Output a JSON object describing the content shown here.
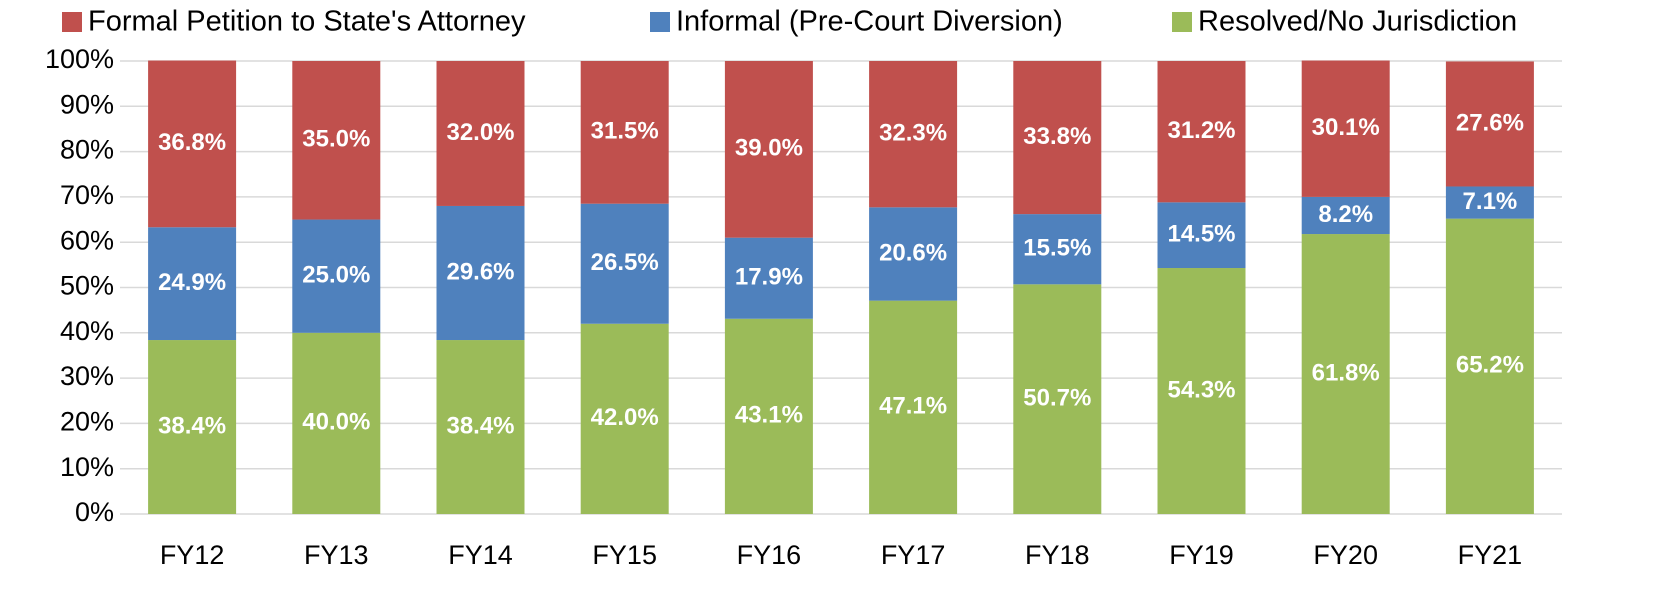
{
  "chart_data": {
    "type": "stacked_bar",
    "categories": [
      "FY12",
      "FY13",
      "FY14",
      "FY15",
      "FY16",
      "FY17",
      "FY18",
      "FY19",
      "FY20",
      "FY21"
    ],
    "series": [
      {
        "name": "Resolved/No Jurisdiction",
        "color": "#9bbb59",
        "values": [
          38.4,
          40.0,
          38.4,
          42.0,
          43.1,
          47.1,
          50.7,
          54.3,
          61.8,
          65.2
        ],
        "value_labels": [
          "38.4%",
          "40.0%",
          "38.4%",
          "42.0%",
          "43.1%",
          "47.1%",
          "50.7%",
          "54.3%",
          "61.8%",
          "65.2%"
        ]
      },
      {
        "name": "Informal (Pre-Court Diversion)",
        "color": "#4f81bd",
        "values": [
          24.9,
          25.0,
          29.6,
          26.5,
          17.9,
          20.6,
          15.5,
          14.5,
          8.2,
          7.1
        ],
        "value_labels": [
          "24.9%",
          "25.0%",
          "29.6%",
          "26.5%",
          "17.9%",
          "20.6%",
          "15.5%",
          "14.5%",
          "8.2%",
          "7.1%"
        ]
      },
      {
        "name": "Formal Petition to State's Attorney",
        "color": "#c0504d",
        "values": [
          36.8,
          35.0,
          32.0,
          31.5,
          39.0,
          32.3,
          33.8,
          31.2,
          30.1,
          27.6
        ],
        "value_labels": [
          "36.8%",
          "35.0%",
          "32.0%",
          "31.5%",
          "39.0%",
          "32.3%",
          "33.8%",
          "31.2%",
          "30.1%",
          "27.6%"
        ]
      }
    ],
    "ylim": [
      0,
      100
    ],
    "yticks": [
      {
        "value": 0,
        "label": "0%"
      },
      {
        "value": 10,
        "label": "10%"
      },
      {
        "value": 20,
        "label": "20%"
      },
      {
        "value": 30,
        "label": "30%"
      },
      {
        "value": 40,
        "label": "40%"
      },
      {
        "value": 50,
        "label": "50%"
      },
      {
        "value": 60,
        "label": "60%"
      },
      {
        "value": 70,
        "label": "70%"
      },
      {
        "value": 80,
        "label": "80%"
      },
      {
        "value": 90,
        "label": "90%"
      },
      {
        "value": 100,
        "label": "100%"
      }
    ],
    "grid": true
  }
}
